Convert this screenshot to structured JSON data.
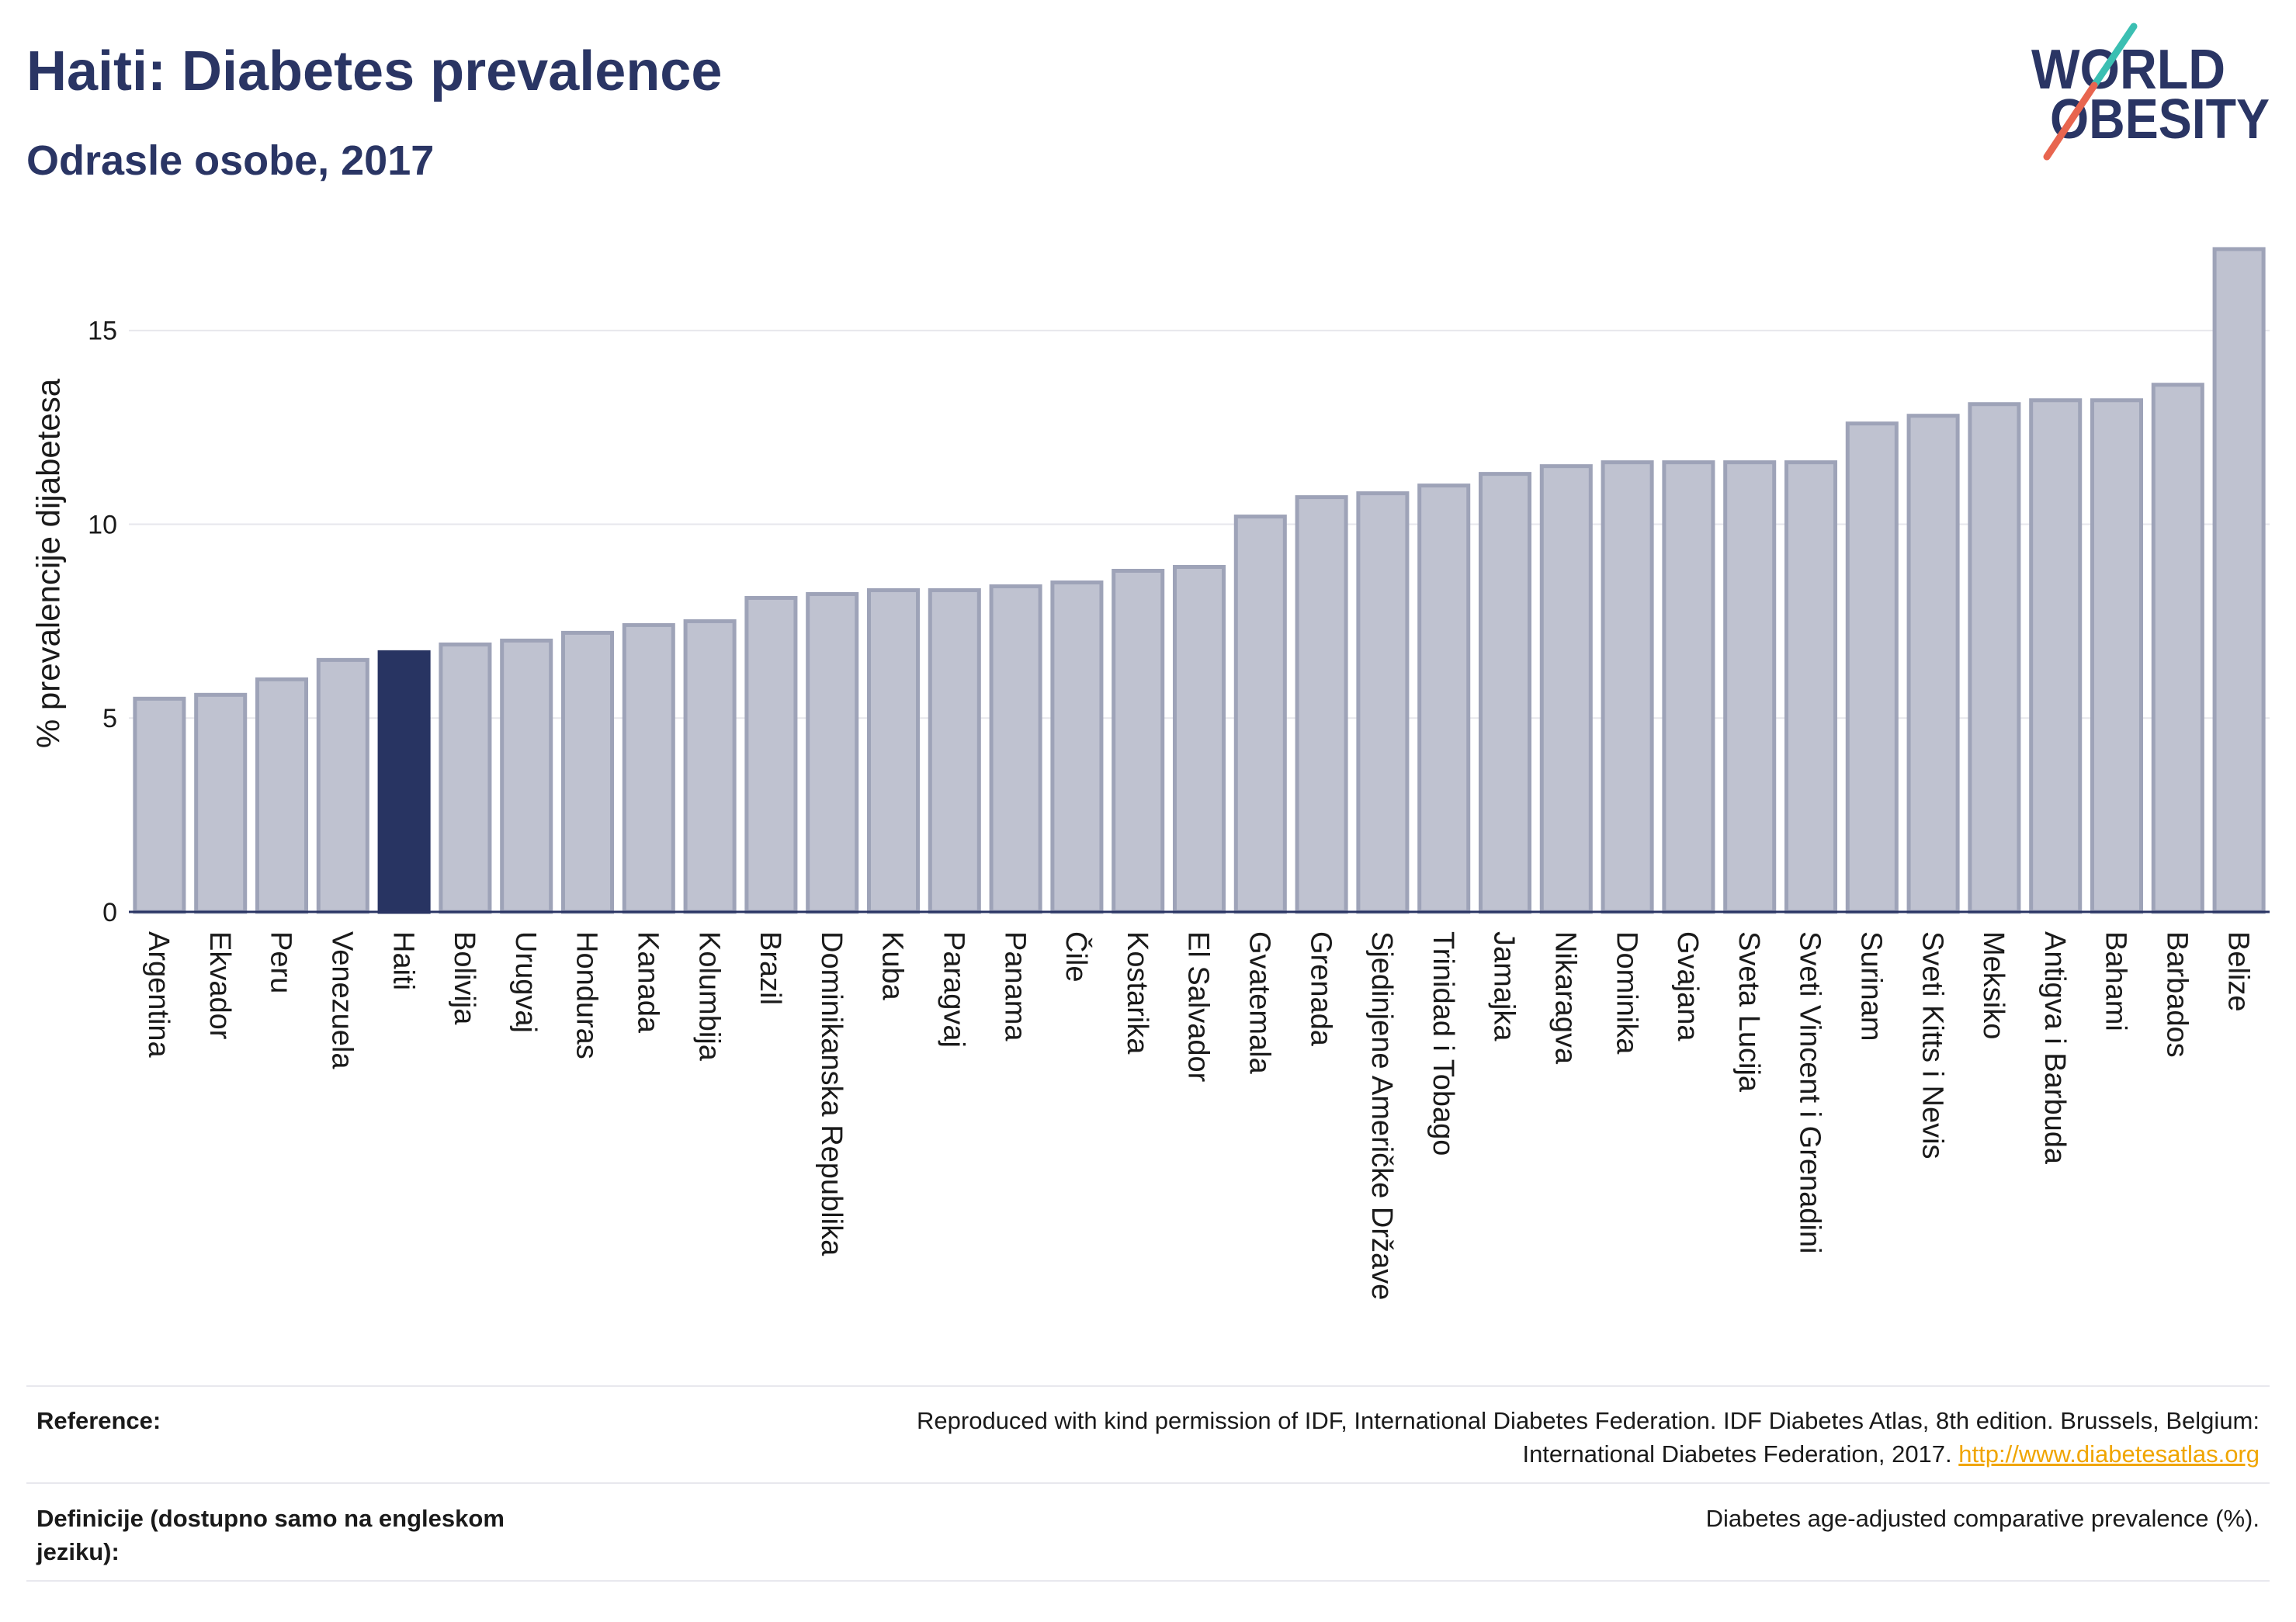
{
  "title": "Haiti: Diabetes prevalence",
  "subtitle": "Odrasle osobe, 2017",
  "logo": {
    "line1": "WORLD",
    "line2": "OBESITY",
    "colors": {
      "text": "#2a3564",
      "slash_top": "#3bbfb2",
      "slash_bottom": "#e8654f"
    }
  },
  "chart_data": {
    "type": "bar",
    "title": "Haiti: Diabetes prevalence",
    "subtitle": "Odrasle osobe, 2017",
    "xlabel": "",
    "ylabel": "% prevalencije dijabetesa",
    "ylim": [
      0,
      17.9
    ],
    "yticks": [
      0,
      5,
      10,
      15
    ],
    "grid": true,
    "legend": "none",
    "highlight": "Haiti",
    "categories": [
      "Argentina",
      "Ekvador",
      "Peru",
      "Venezuela",
      "Haiti",
      "Bolivija",
      "Urugvaj",
      "Honduras",
      "Kanada",
      "Kolumbija",
      "Brazil",
      "Dominikanska Republika",
      "Kuba",
      "Paragvaj",
      "Panama",
      "Čile",
      "Kostarika",
      "El Salvador",
      "Gvatemala",
      "Grenada",
      "Sjedinjene Američke Države",
      "Trinidad i Tobago",
      "Jamajka",
      "Nikaragva",
      "Dominika",
      "Gvajana",
      "Sveta Lucija",
      "Sveti Vincent i Grenadini",
      "Surinam",
      "Sveti Kitts i Nevis",
      "Meksiko",
      "Antigva i Barbuda",
      "Bahami",
      "Barbados",
      "Belize"
    ],
    "values": [
      5.5,
      5.6,
      6.0,
      6.5,
      6.7,
      6.9,
      7.0,
      7.2,
      7.4,
      7.5,
      8.1,
      8.2,
      8.3,
      8.3,
      8.4,
      8.5,
      8.8,
      8.9,
      10.2,
      10.7,
      10.8,
      11.0,
      11.3,
      11.5,
      11.6,
      11.6,
      11.6,
      11.6,
      12.6,
      12.8,
      13.1,
      13.2,
      13.2,
      13.6,
      17.1
    ],
    "colors": {
      "bar": "#bfc2d0",
      "bar_border": "#9ea3b8",
      "highlight": "#283462",
      "axis": "#2a3564",
      "grid": "#e7e7ec"
    }
  },
  "footer": {
    "reference_label": "Reference:",
    "reference_text_1": "Reproduced with kind permission of IDF, International Diabetes Federation. IDF Diabetes Atlas, 8th edition. Brussels, Belgium:",
    "reference_text_2": "International Diabetes Federation, 2017.",
    "reference_link": "http://www.diabetesatlas.org",
    "definition_label": "Definicije (dostupno samo na engleskom jeziku):",
    "definition_text": "Diabetes age-adjusted comparative prevalence (%)."
  }
}
